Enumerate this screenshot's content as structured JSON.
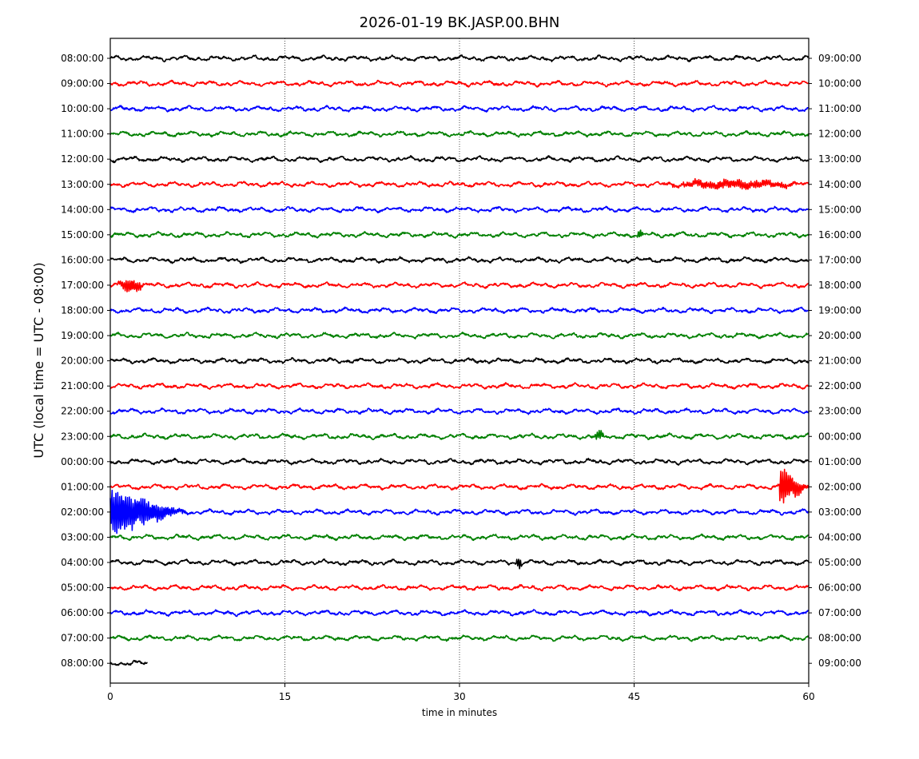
{
  "chart_data": {
    "type": "line",
    "title": "2026-01-19 BK.JASP.00.BHN",
    "xlabel": "time in minutes",
    "ylabel": "UTC (local time = UTC - 08:00)",
    "xlim": [
      0,
      60
    ],
    "x_ticks": [
      "0",
      "15",
      "30",
      "45",
      "60"
    ],
    "x_tick_values": [
      0,
      15,
      30,
      45,
      60
    ],
    "vertical_gridlines_at": [
      15,
      30,
      45
    ],
    "vertical_grid_style": "dotted",
    "colors_cycle": [
      "#000000",
      "#ff0000",
      "#0000ff",
      "#008000"
    ],
    "rows": [
      {
        "left_label": "08:00:00",
        "right_label": "09:00:00",
        "color": "#000000",
        "end_minute": 60,
        "events": []
      },
      {
        "left_label": "09:00:00",
        "right_label": "10:00:00",
        "color": "#ff0000",
        "end_minute": 60,
        "events": []
      },
      {
        "left_label": "10:00:00",
        "right_label": "11:00:00",
        "color": "#0000ff",
        "end_minute": 60,
        "events": []
      },
      {
        "left_label": "11:00:00",
        "right_label": "12:00:00",
        "color": "#008000",
        "end_minute": 60,
        "events": []
      },
      {
        "left_label": "12:00:00",
        "right_label": "13:00:00",
        "color": "#000000",
        "end_minute": 60,
        "events": []
      },
      {
        "left_label": "13:00:00",
        "right_label": "14:00:00",
        "color": "#ff0000",
        "end_minute": 60,
        "events": [
          {
            "start": 47,
            "end": 60,
            "amp": 0.25
          }
        ]
      },
      {
        "left_label": "14:00:00",
        "right_label": "15:00:00",
        "color": "#0000ff",
        "end_minute": 60,
        "events": []
      },
      {
        "left_label": "15:00:00",
        "right_label": "16:00:00",
        "color": "#008000",
        "end_minute": 60,
        "events": [
          {
            "start": 45.2,
            "end": 45.8,
            "amp": 0.3
          }
        ]
      },
      {
        "left_label": "16:00:00",
        "right_label": "17:00:00",
        "color": "#000000",
        "end_minute": 60,
        "events": []
      },
      {
        "left_label": "17:00:00",
        "right_label": "18:00:00",
        "color": "#ff0000",
        "end_minute": 60,
        "events": [
          {
            "start": 0.5,
            "end": 3,
            "amp": 0.4
          }
        ]
      },
      {
        "left_label": "18:00:00",
        "right_label": "19:00:00",
        "color": "#0000ff",
        "end_minute": 60,
        "events": []
      },
      {
        "left_label": "19:00:00",
        "right_label": "20:00:00",
        "color": "#008000",
        "end_minute": 60,
        "events": []
      },
      {
        "left_label": "20:00:00",
        "right_label": "21:00:00",
        "color": "#000000",
        "end_minute": 60,
        "events": []
      },
      {
        "left_label": "21:00:00",
        "right_label": "22:00:00",
        "color": "#ff0000",
        "end_minute": 60,
        "events": []
      },
      {
        "left_label": "22:00:00",
        "right_label": "23:00:00",
        "color": "#0000ff",
        "end_minute": 60,
        "events": []
      },
      {
        "left_label": "23:00:00",
        "right_label": "00:00:00",
        "color": "#008000",
        "end_minute": 60,
        "events": [
          {
            "start": 41.5,
            "end": 42.5,
            "amp": 0.3
          }
        ]
      },
      {
        "left_label": "00:00:00",
        "right_label": "01:00:00",
        "color": "#000000",
        "end_minute": 60,
        "events": []
      },
      {
        "left_label": "01:00:00",
        "right_label": "02:00:00",
        "color": "#ff0000",
        "end_minute": 60,
        "events": [
          {
            "start": 57.5,
            "end": 60,
            "amp": 1.3
          }
        ]
      },
      {
        "left_label": "02:00:00",
        "right_label": "03:00:00",
        "color": "#0000ff",
        "end_minute": 60,
        "events": [
          {
            "start": 0,
            "end": 6.5,
            "amp": 1.5
          }
        ]
      },
      {
        "left_label": "03:00:00",
        "right_label": "04:00:00",
        "color": "#008000",
        "end_minute": 60,
        "events": []
      },
      {
        "left_label": "04:00:00",
        "right_label": "05:00:00",
        "color": "#000000",
        "end_minute": 60,
        "events": [
          {
            "start": 34.8,
            "end": 35.4,
            "amp": 0.4
          }
        ]
      },
      {
        "left_label": "05:00:00",
        "right_label": "06:00:00",
        "color": "#ff0000",
        "end_minute": 60,
        "events": []
      },
      {
        "left_label": "06:00:00",
        "right_label": "07:00:00",
        "color": "#0000ff",
        "end_minute": 60,
        "events": []
      },
      {
        "left_label": "07:00:00",
        "right_label": "08:00:00",
        "color": "#008000",
        "end_minute": 60,
        "events": []
      },
      {
        "left_label": "08:00:00",
        "right_label": "09:00:00",
        "color": "#000000",
        "end_minute": 3.2,
        "events": []
      }
    ]
  }
}
